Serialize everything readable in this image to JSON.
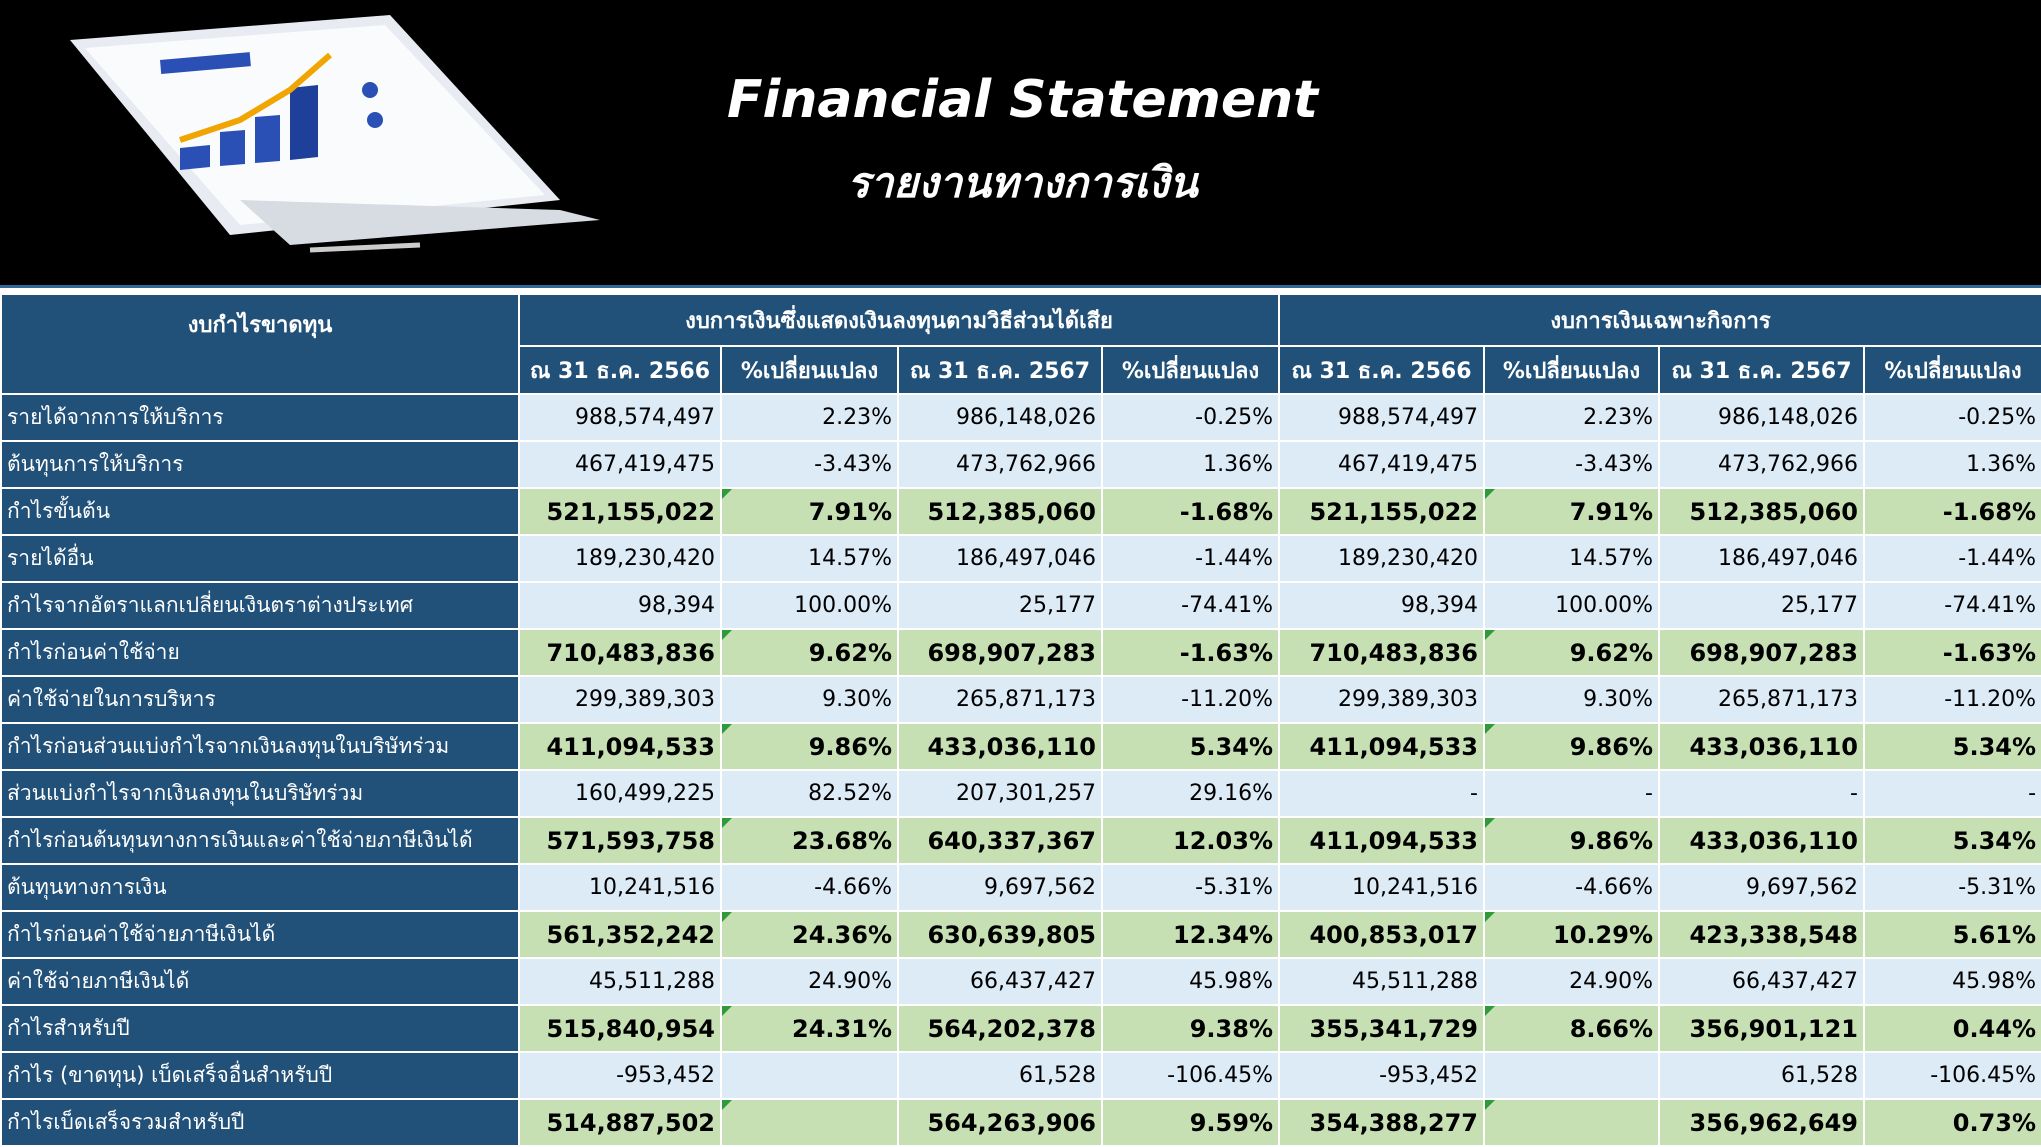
{
  "header": {
    "title": "Financial Statement",
    "subtitle": "รายงานทางการเงิน"
  },
  "table": {
    "corner": "งบกำไรขาดทุน",
    "groups": [
      "งบการเงินซึ่งแสดงเงินลงทุนตามวิธีส่วนได้เสีย",
      "งบการเงินเฉพาะกิจการ"
    ],
    "subheaders": [
      "ณ  31 ธ.ค. 2566",
      "%เปลี่ยนแปลง",
      "ณ  31 ธ.ค. 2567",
      "%เปลี่ยนแปลง",
      "ณ  31 ธ.ค. 2566",
      "%เปลี่ยนแปลง",
      "ณ  31 ธ.ค. 2567",
      "%เปลี่ยนแปลง"
    ],
    "rows": [
      {
        "label": "รายได้จากการให้บริการ",
        "total": false,
        "cells": [
          "988,574,497",
          "2.23%",
          "986,148,026",
          "-0.25%",
          "988,574,497",
          "2.23%",
          "986,148,026",
          "-0.25%"
        ]
      },
      {
        "label": "ต้นทุนการให้บริการ",
        "total": false,
        "cells": [
          "467,419,475",
          "-3.43%",
          "473,762,966",
          "1.36%",
          "467,419,475",
          "-3.43%",
          "473,762,966",
          "1.36%"
        ]
      },
      {
        "label": "กำไรขั้นต้น",
        "total": true,
        "cells": [
          "521,155,022",
          "7.91%",
          "512,385,060",
          "-1.68%",
          "521,155,022",
          "7.91%",
          "512,385,060",
          "-1.68%"
        ]
      },
      {
        "label": "รายได้อื่น",
        "total": false,
        "cells": [
          "189,230,420",
          "14.57%",
          "186,497,046",
          "-1.44%",
          "189,230,420",
          "14.57%",
          "186,497,046",
          "-1.44%"
        ]
      },
      {
        "label": "กำไรจากอัตราแลกเปลี่ยนเงินตราต่างประเทศ",
        "total": false,
        "cells": [
          "98,394",
          "100.00%",
          "25,177",
          "-74.41%",
          "98,394",
          "100.00%",
          "25,177",
          "-74.41%"
        ]
      },
      {
        "label": "กำไรก่อนค่าใช้จ่าย",
        "total": true,
        "cells": [
          "710,483,836",
          "9.62%",
          "698,907,283",
          "-1.63%",
          "710,483,836",
          "9.62%",
          "698,907,283",
          "-1.63%"
        ]
      },
      {
        "label": "ค่าใช้จ่ายในการบริหาร",
        "total": false,
        "cells": [
          "299,389,303",
          "9.30%",
          "265,871,173",
          "-11.20%",
          "299,389,303",
          "9.30%",
          "265,871,173",
          "-11.20%"
        ]
      },
      {
        "label": "กำไรก่อนส่วนแบ่งกำไรจากเงินลงทุนในบริษัทร่วม",
        "total": true,
        "cells": [
          "411,094,533",
          "9.86%",
          "433,036,110",
          "5.34%",
          "411,094,533",
          "9.86%",
          "433,036,110",
          "5.34%"
        ]
      },
      {
        "label": "ส่วนแบ่งกำไรจากเงินลงทุนในบริษัทร่วม",
        "total": false,
        "cells": [
          "160,499,225",
          "82.52%",
          "207,301,257",
          "29.16%",
          "-",
          "-",
          "-",
          "-"
        ]
      },
      {
        "label": "กำไรก่อนต้นทุนทางการเงินและค่าใช้จ่ายภาษีเงินได้",
        "total": true,
        "cells": [
          "571,593,758",
          "23.68%",
          "640,337,367",
          "12.03%",
          "411,094,533",
          "9.86%",
          "433,036,110",
          "5.34%"
        ]
      },
      {
        "label": "ต้นทุนทางการเงิน",
        "total": false,
        "cells": [
          "10,241,516",
          "-4.66%",
          "9,697,562",
          "-5.31%",
          "10,241,516",
          "-4.66%",
          "9,697,562",
          "-5.31%"
        ]
      },
      {
        "label": "กำไรก่อนค่าใช้จ่ายภาษีเงินได้",
        "total": true,
        "cells": [
          "561,352,242",
          "24.36%",
          "630,639,805",
          "12.34%",
          "400,853,017",
          "10.29%",
          "423,338,548",
          "5.61%"
        ]
      },
      {
        "label": "ค่าใช้จ่ายภาษีเงินได้",
        "total": false,
        "cells": [
          "45,511,288",
          "24.90%",
          "66,437,427",
          "45.98%",
          "45,511,288",
          "24.90%",
          "66,437,427",
          "45.98%"
        ]
      },
      {
        "label": "กำไรสำหรับปี",
        "total": true,
        "cells": [
          "515,840,954",
          "24.31%",
          "564,202,378",
          "9.38%",
          "355,341,729",
          "8.66%",
          "356,901,121",
          "0.44%"
        ]
      },
      {
        "label": "กำไร (ขาดทุน) เบ็ดเสร็จอื่นสำหรับปี",
        "total": false,
        "cells": [
          "-953,452",
          null,
          "61,528",
          "-106.45%",
          "-953,452",
          null,
          "61,528",
          "-106.45%"
        ]
      },
      {
        "label": "กำไรเบ็ดเสร็จรวมสำหรับปี",
        "total": true,
        "cells": [
          "514,887,502",
          null,
          "564,263,906",
          "9.59%",
          "354,388,277",
          null,
          "356,962,649",
          "0.73%"
        ]
      }
    ]
  }
}
